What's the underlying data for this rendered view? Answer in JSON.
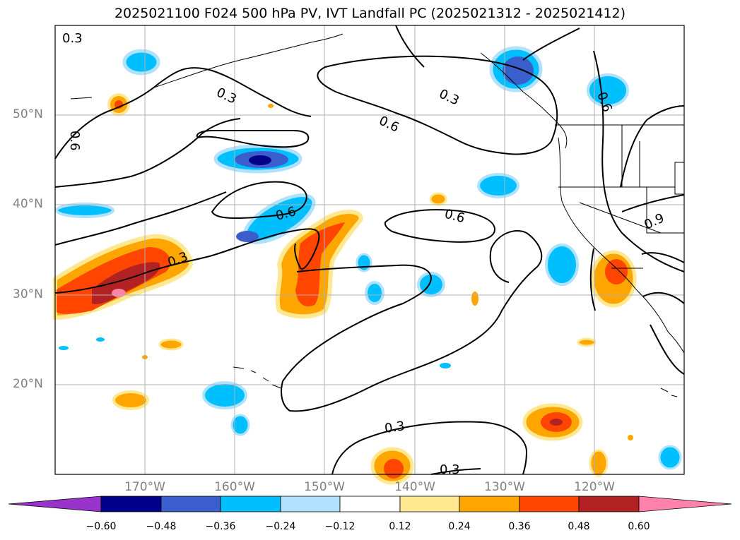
{
  "title": "2025021100 F024 500 hPa PV, IVT Landfall PC (2025021312 - 2025021412)",
  "map": {
    "lat_labels": [
      "50°N",
      "40°N",
      "30°N",
      "20°N"
    ],
    "lon_labels": [
      "170°W",
      "160°W",
      "150°W",
      "140°W",
      "130°W",
      "120°W"
    ],
    "contour_labels": [
      "0.3",
      "0.3",
      "0.6",
      "0.6",
      "0.3",
      "0.6",
      "0.3",
      "0.6",
      "0.6",
      "0.9",
      "0.3",
      "0.3"
    ]
  },
  "colorbar": {
    "ticks": [
      "−0.60",
      "−0.48",
      "−0.36",
      "−0.24",
      "−0.12",
      "0.12",
      "0.24",
      "0.36",
      "0.48",
      "0.60"
    ],
    "colors": [
      "#9933cc",
      "#00008b",
      "#3a5fcd",
      "#00bfff",
      "#b0e2ff",
      "#ffffff",
      "#ffe88f",
      "#ffa500",
      "#ff4500",
      "#b22222",
      "#ff82ab"
    ]
  }
}
